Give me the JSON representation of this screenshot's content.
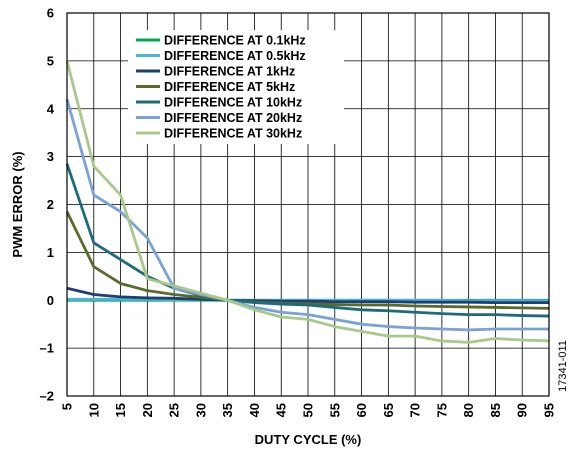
{
  "chart_data": {
    "type": "line",
    "xlabel": "DUTY CYCLE (%)",
    "ylabel": "PWM ERROR (%)",
    "xlim": [
      5,
      95
    ],
    "ylim": [
      -2,
      6
    ],
    "x": [
      5,
      10,
      15,
      20,
      25,
      30,
      35,
      40,
      45,
      50,
      55,
      60,
      65,
      70,
      75,
      80,
      85,
      90,
      95
    ],
    "x_ticks": [
      "5",
      "10",
      "15",
      "20",
      "25",
      "30",
      "35",
      "40",
      "45",
      "50",
      "55",
      "60",
      "65",
      "70",
      "75",
      "80",
      "85",
      "90",
      "95"
    ],
    "y_ticks": [
      "–2",
      "–1",
      "0",
      "1",
      "2",
      "3",
      "4",
      "5",
      "6"
    ],
    "grid": true,
    "legend_position": "top-center",
    "series": [
      {
        "name": "DIFFERENCE AT 0.1kHz",
        "color": "#00a651",
        "values": [
          0.0,
          0.0,
          0.0,
          0.0,
          0.0,
          0.0,
          0.0,
          0.0,
          0.0,
          0.0,
          0.0,
          0.0,
          0.0,
          0.0,
          0.0,
          0.0,
          0.0,
          0.0,
          0.0
        ]
      },
      {
        "name": "DIFFERENCE AT 0.5kHz",
        "color": "#4fb3d9",
        "values": [
          0.02,
          0.02,
          0.02,
          0.02,
          0.01,
          0.01,
          0.0,
          0.0,
          0.0,
          0.0,
          0.0,
          0.0,
          0.0,
          0.0,
          0.0,
          -0.01,
          -0.01,
          -0.01,
          -0.01
        ]
      },
      {
        "name": "DIFFERENCE AT 1kHz",
        "color": "#1f3f73",
        "values": [
          0.25,
          0.12,
          0.07,
          0.05,
          0.04,
          0.02,
          0.0,
          -0.01,
          -0.02,
          -0.02,
          -0.03,
          -0.03,
          -0.03,
          -0.04,
          -0.04,
          -0.04,
          -0.05,
          -0.05,
          -0.05
        ]
      },
      {
        "name": "DIFFERENCE AT 5kHz",
        "color": "#586b2a",
        "values": [
          1.85,
          0.7,
          0.35,
          0.2,
          0.12,
          0.06,
          0.0,
          -0.04,
          -0.06,
          -0.07,
          -0.09,
          -0.1,
          -0.1,
          -0.12,
          -0.13,
          -0.14,
          -0.15,
          -0.16,
          -0.17
        ]
      },
      {
        "name": "DIFFERENCE AT 10kHz",
        "color": "#1e6b7a",
        "values": [
          2.85,
          1.2,
          0.85,
          0.5,
          0.25,
          0.1,
          0.0,
          -0.05,
          -0.08,
          -0.1,
          -0.15,
          -0.2,
          -0.22,
          -0.25,
          -0.28,
          -0.3,
          -0.3,
          -0.32,
          -0.33
        ]
      },
      {
        "name": "DIFFERENCE AT 20kHz",
        "color": "#7aa2d6",
        "values": [
          4.2,
          2.2,
          1.85,
          1.3,
          0.25,
          0.12,
          0.0,
          -0.15,
          -0.25,
          -0.3,
          -0.4,
          -0.5,
          -0.55,
          -0.58,
          -0.6,
          -0.62,
          -0.6,
          -0.6,
          -0.6
        ]
      },
      {
        "name": "DIFFERENCE AT 30kHz",
        "color": "#a8c98a",
        "values": [
          5.0,
          2.8,
          2.2,
          0.45,
          0.3,
          0.15,
          0.0,
          -0.2,
          -0.35,
          -0.4,
          -0.55,
          -0.65,
          -0.75,
          -0.75,
          -0.85,
          -0.88,
          -0.8,
          -0.83,
          -0.85
        ]
      }
    ]
  },
  "figure_id": "17341-011"
}
